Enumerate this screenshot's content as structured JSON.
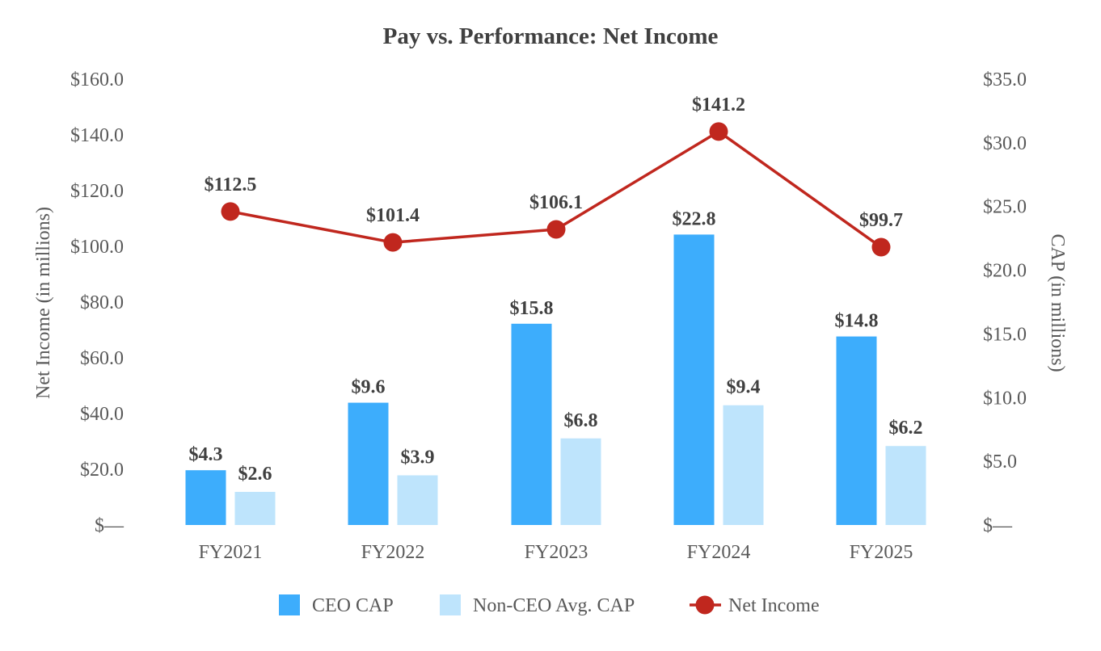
{
  "chart_data": {
    "type": "bar",
    "title": "Pay vs. Performance: Net Income",
    "categories": [
      "FY2021",
      "FY2022",
      "FY2023",
      "FY2024",
      "FY2025"
    ],
    "y_left": {
      "label": "Net Income (in millions)",
      "lim": [
        0,
        160
      ],
      "ticks": [
        0,
        20,
        40,
        60,
        80,
        100,
        120,
        140,
        160
      ],
      "tick_labels": [
        "$—",
        "$20.0",
        "$40.0",
        "$60.0",
        "$80.0",
        "$100.0",
        "$120.0",
        "$140.0",
        "$160.0"
      ]
    },
    "y_right": {
      "label": "CAP (in millions)",
      "lim": [
        0,
        35
      ],
      "ticks": [
        0,
        5,
        10,
        15,
        20,
        25,
        30,
        35
      ],
      "tick_labels": [
        "$—",
        "$5.0",
        "$10.0",
        "$15.0",
        "$20.0",
        "$25.0",
        "$30.0",
        "$35.0"
      ]
    },
    "series": [
      {
        "name": "CEO CAP",
        "type": "bar",
        "axis": "right",
        "color": "#3DADFC",
        "values": [
          4.3,
          9.6,
          15.8,
          22.8,
          14.8
        ],
        "labels": [
          "$4.3",
          "$9.6",
          "$15.8",
          "$22.8",
          "$14.8"
        ]
      },
      {
        "name": "Non-CEO Avg. CAP",
        "type": "bar",
        "axis": "right",
        "color": "#BEE4FC",
        "values": [
          2.6,
          3.9,
          6.8,
          9.4,
          6.2
        ],
        "labels": [
          "$2.6",
          "$3.9",
          "$6.8",
          "$9.4",
          "$6.2"
        ]
      },
      {
        "name": "Net Income",
        "type": "line",
        "axis": "left",
        "color": "#C0271E",
        "values": [
          112.5,
          101.4,
          106.1,
          141.2,
          99.7
        ],
        "labels": [
          "$112.5",
          "$101.4",
          "$106.1",
          "$141.2",
          "$99.7"
        ]
      }
    ],
    "grid": false,
    "legend_position": "bottom"
  }
}
